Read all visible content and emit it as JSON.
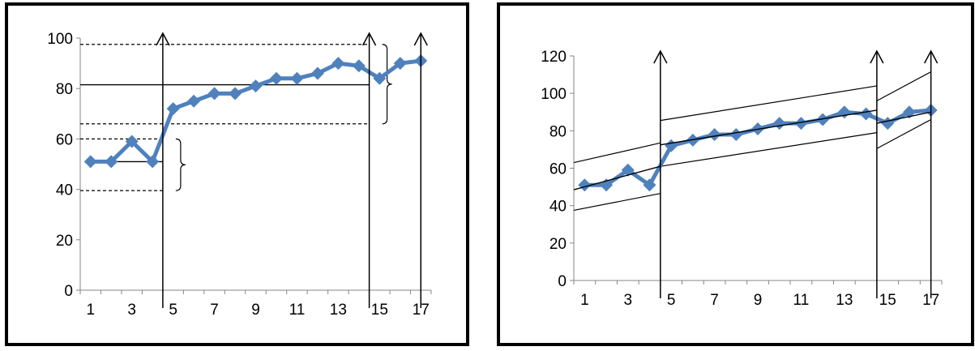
{
  "colors": {
    "series": "#4f81bd",
    "lines": "#000000",
    "background": "#ffffff"
  },
  "chart_data": [
    {
      "type": "line",
      "x": [
        1,
        2,
        3,
        4,
        5,
        6,
        7,
        8,
        9,
        10,
        11,
        12,
        13,
        14,
        15,
        16,
        17
      ],
      "series": [
        {
          "values": [
            51,
            51,
            59,
            51,
            72,
            75,
            78,
            78,
            81,
            84,
            84,
            86,
            90,
            89,
            84,
            90,
            91
          ]
        }
      ],
      "xtick_labels": [
        "1",
        "3",
        "5",
        "7",
        "9",
        "11",
        "13",
        "15",
        "17"
      ],
      "ytick_labels": [
        "0",
        "20",
        "40",
        "60",
        "80",
        "100"
      ],
      "ylim": [
        0,
        100
      ],
      "xlim": [
        0.5,
        17.5
      ],
      "phase_change_at": [
        4.5,
        14.5,
        17
      ],
      "mean_levels": [
        {
          "x": [
            0.8,
            4.5
          ],
          "y": 51
        },
        {
          "x": [
            0.5,
            14.5
          ],
          "y": 81.5
        }
      ],
      "range_bands": [
        {
          "x": [
            0.5,
            4.5
          ],
          "low": 39.5,
          "high": 60
        },
        {
          "x": [
            0.5,
            14.5
          ],
          "low": 66,
          "high": 97.5
        }
      ]
    },
    {
      "type": "line",
      "x": [
        1,
        2,
        3,
        4,
        5,
        6,
        7,
        8,
        9,
        10,
        11,
        12,
        13,
        14,
        15,
        16,
        17
      ],
      "series": [
        {
          "values": [
            51,
            51,
            59,
            51,
            72,
            75,
            78,
            78,
            81,
            84,
            84,
            86,
            90,
            89,
            84,
            90,
            91
          ]
        }
      ],
      "xtick_labels": [
        "1",
        "3",
        "5",
        "7",
        "9",
        "11",
        "13",
        "15",
        "17"
      ],
      "ytick_labels": [
        "0",
        "20",
        "40",
        "60",
        "80",
        "100",
        "120"
      ],
      "ylim": [
        0,
        120
      ],
      "xlim": [
        0.5,
        17.5
      ],
      "phase_change_at": [
        4.5,
        14.5,
        17
      ],
      "trend_lines": [
        {
          "x": [
            0.5,
            4.5
          ],
          "y": [
            48.5,
            61
          ]
        },
        {
          "x": [
            4.5,
            14.5
          ],
          "y": [
            72.5,
            91
          ]
        },
        {
          "x": [
            14.5,
            17
          ],
          "y": [
            84,
            90
          ]
        }
      ],
      "trend_bands": [
        {
          "x": [
            0.5,
            4.5
          ],
          "upper": [
            63,
            73.5
          ],
          "lower": [
            37.5,
            46.5
          ]
        },
        {
          "x": [
            4.5,
            14.5
          ],
          "upper": [
            85.5,
            104
          ],
          "lower": [
            61,
            79
          ]
        },
        {
          "x": [
            14.5,
            17
          ],
          "upper": [
            96,
            111.5
          ],
          "lower": [
            70.5,
            86
          ]
        }
      ]
    }
  ]
}
